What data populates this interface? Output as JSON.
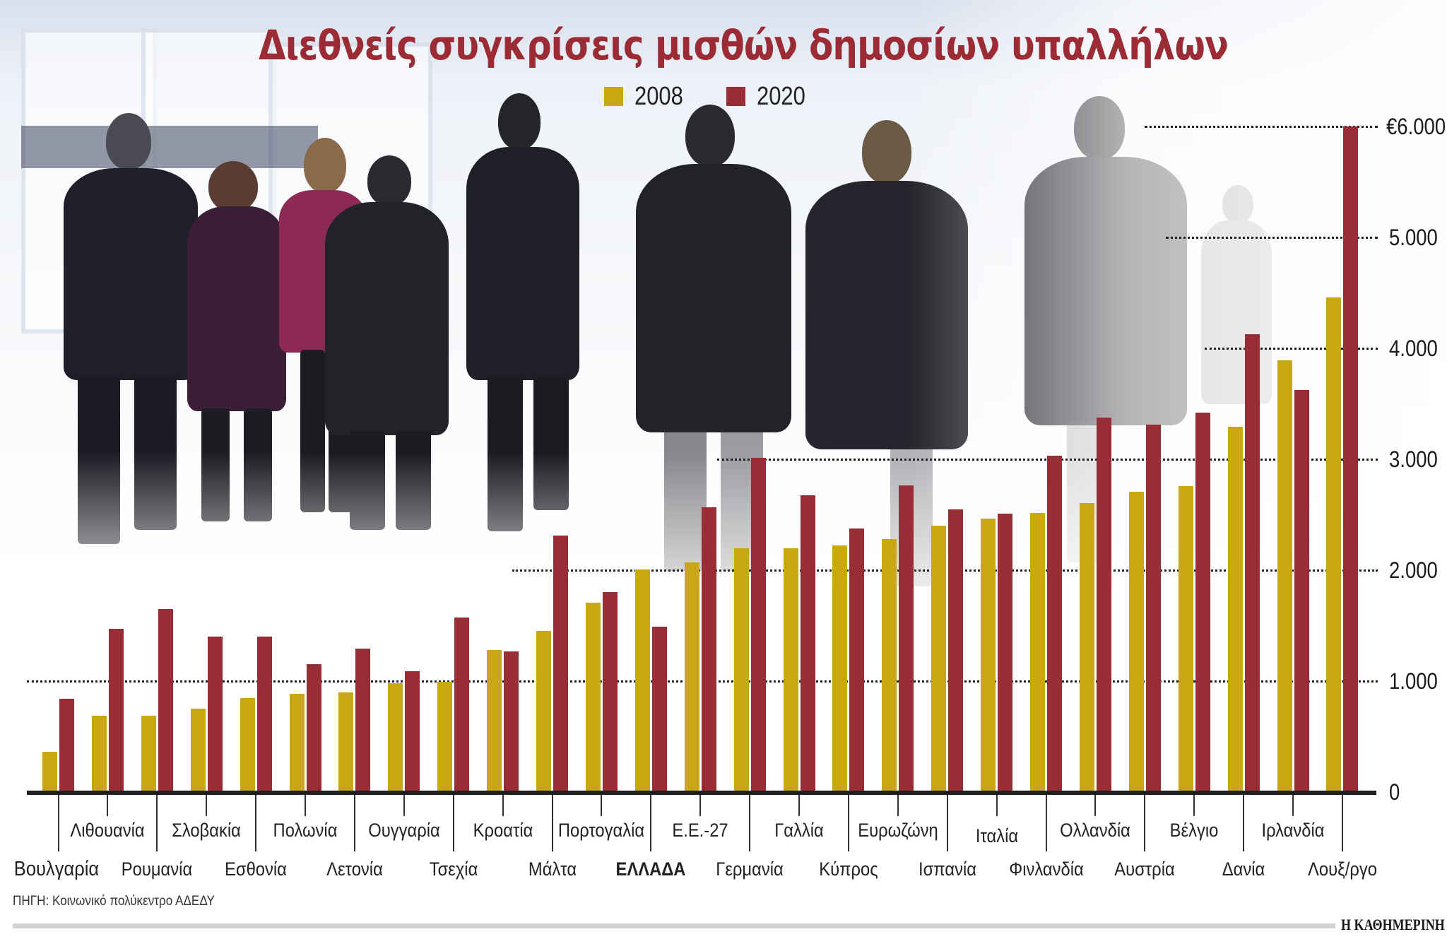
{
  "title": "Διεθνείς συγκρίσεις μισθών δημοσίων υπαλλήλων",
  "legend": [
    {
      "label": "2008",
      "color": "#c9a70e"
    },
    {
      "label": "2020",
      "color": "#982d36"
    }
  ],
  "y_axis": {
    "ticks": [
      {
        "value": 0,
        "label": "0"
      },
      {
        "value": 1000,
        "label": "1.000"
      },
      {
        "value": 2000,
        "label": "2.000"
      },
      {
        "value": 3000,
        "label": "3.000"
      },
      {
        "value": 4000,
        "label": "4.000"
      },
      {
        "value": 5000,
        "label": "5.000"
      },
      {
        "value": 6000,
        "label": "€6.000"
      }
    ]
  },
  "source": "ΠΗΓΗ: Κοινωνικό πολύκεντρο ΑΔΕΔΥ",
  "publisher": "Η ΚΑΘΗΜΕΡΙΝΗ",
  "highlight_category": "ΕΛΛΑΔΑ",
  "chart_data": {
    "type": "bar",
    "title": "Διεθνείς συγκρίσεις μισθών δημοσίων υπαλλήλων",
    "xlabel": "",
    "ylabel": "€",
    "ylim": [
      0,
      6000
    ],
    "grid": true,
    "legend_position": "top-center",
    "categories": [
      "Βουλγαρία",
      "Λιθουανία",
      "Ρουμανία",
      "Σλοβακία",
      "Εσθονία",
      "Πολωνία",
      "Λετονία",
      "Ουγγαρία",
      "Τσεχία",
      "Κροατία",
      "Μάλτα",
      "Πορτογαλία",
      "ΕΛΛΑΔΑ",
      "Ε.Ε.-27",
      "Γερμανία",
      "Γαλλία",
      "Κύπρος",
      "Ευρωζώνη",
      "Ισπανία",
      "Ιταλία",
      "Φινλανδία",
      "Ολλανδία",
      "Αυστρία",
      "Βέλγιο",
      "Δανία",
      "Ιρλανδία",
      "Λουξ/ργο"
    ],
    "series": [
      {
        "name": "2008",
        "color": "#c9a70e",
        "values": [
          360,
          690,
          690,
          750,
          845,
          885,
          900,
          980,
          995,
          1280,
          1450,
          1710,
          2005,
          2070,
          2195,
          2195,
          2225,
          2280,
          2400,
          2465,
          2515,
          2605,
          2710,
          2760,
          3295,
          3890,
          4460
        ]
      },
      {
        "name": "2020",
        "color": "#982d36",
        "values": [
          840,
          1470,
          1650,
          1400,
          1400,
          1150,
          1295,
          1090,
          1575,
          1265,
          2315,
          1800,
          1490,
          2565,
          3010,
          2675,
          2375,
          2765,
          2550,
          2510,
          3030,
          3375,
          3310,
          3420,
          4125,
          3625,
          6000
        ]
      }
    ]
  }
}
